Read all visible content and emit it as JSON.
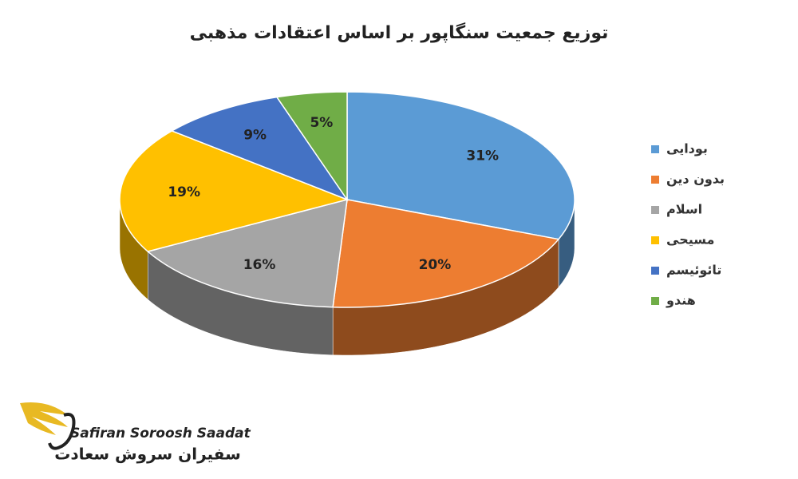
{
  "chart_data": {
    "type": "pie3d",
    "title": "توزیع جمعیت سنگاپور بر اساس اعتقادات مذهبی",
    "categories": [
      "بودایی",
      "بدون دین",
      "اسلام",
      "مسیحی",
      "تائوئیسم",
      "هندو"
    ],
    "values": [
      31,
      20,
      16,
      19,
      9,
      5
    ],
    "value_labels": [
      "31%",
      "20%",
      "16%",
      "19%",
      "9%",
      "5%"
    ],
    "colors": [
      "#5b9bd5",
      "#ed7d31",
      "#a5a5a5",
      "#ffc000",
      "#4472c4",
      "#70ad47"
    ],
    "legend": "right"
  },
  "logo": {
    "name_en": "Safiran Soroosh Saadat",
    "name_fa": "سفیران سروش سعادت"
  }
}
